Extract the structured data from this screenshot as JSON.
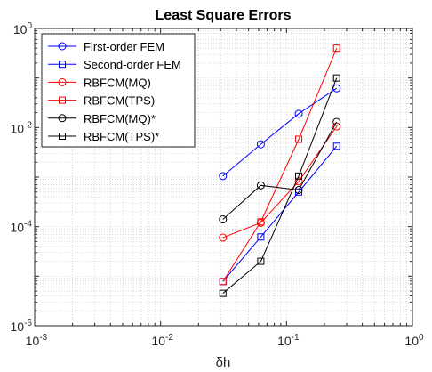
{
  "chart_data": {
    "type": "line",
    "title": "Least Square Errors",
    "xlabel": "δh",
    "ylabel": "",
    "xscale": "log",
    "yscale": "log",
    "xlim": [
      0.001,
      1
    ],
    "ylim": [
      1e-06,
      1
    ],
    "x_tick_labels": [
      {
        "value": 0.001,
        "base": "10",
        "exp": "-3"
      },
      {
        "value": 0.01,
        "base": "10",
        "exp": "-2"
      },
      {
        "value": 0.1,
        "base": "10",
        "exp": "-1"
      },
      {
        "value": 1,
        "base": "10",
        "exp": "0"
      }
    ],
    "y_tick_labels": [
      {
        "value": 1e-06,
        "base": "10",
        "exp": "-6"
      },
      {
        "value": 0.0001,
        "base": "10",
        "exp": "-4"
      },
      {
        "value": 0.01,
        "base": "10",
        "exp": "-2"
      },
      {
        "value": 1,
        "base": "10",
        "exp": "0"
      }
    ],
    "grid": "major and minor, dotted",
    "legend_position": "top-left",
    "x": [
      0.03125,
      0.0625,
      0.125,
      0.25
    ],
    "series": [
      {
        "name": "First-order FEM",
        "color": "#0000ff",
        "marker": "circle",
        "values": [
          0.00105,
          0.0046,
          0.019,
          0.062
        ]
      },
      {
        "name": "Second-order FEM",
        "color": "#0000ff",
        "marker": "square",
        "values": [
          7.8e-06,
          6.2e-05,
          0.0005,
          0.0042
        ]
      },
      {
        "name": "RBFCM(MQ)",
        "color": "#ff0000",
        "marker": "circle",
        "values": [
          6e-05,
          0.00012,
          0.00082,
          0.0105
        ]
      },
      {
        "name": "RBFCM(TPS)",
        "color": "#ff0000",
        "marker": "square",
        "values": [
          7.8e-06,
          0.000125,
          0.0058,
          0.4
        ]
      },
      {
        "name": "RBFCM(MQ)*",
        "color": "#000000",
        "marker": "circle",
        "values": [
          0.00014,
          0.00068,
          0.00055,
          0.013
        ]
      },
      {
        "name": "RBFCM(TPS)*",
        "color": "#000000",
        "marker": "square",
        "values": [
          4.5e-06,
          2e-05,
          0.00105,
          0.1
        ]
      }
    ]
  }
}
